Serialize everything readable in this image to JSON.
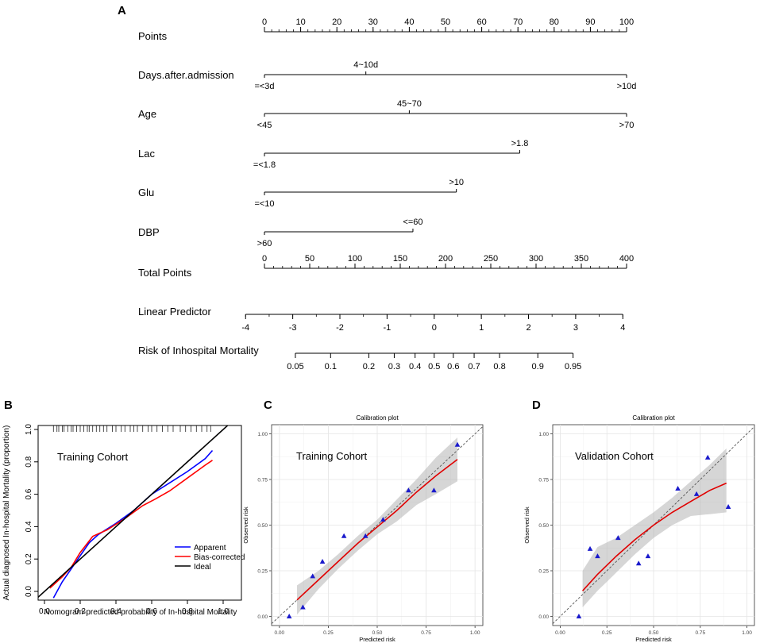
{
  "chart_data": [
    {
      "panel": "A",
      "type": "nomogram",
      "rows": [
        {
          "label": "Points",
          "kind": "scale",
          "min": 0,
          "max": 100,
          "major": [
            0,
            10,
            20,
            30,
            40,
            50,
            60,
            70,
            80,
            90,
            100
          ],
          "minor_step": 2
        },
        {
          "label": "Days.after.admission",
          "kind": "variable",
          "levels": [
            {
              "text": "=<3d",
              "points": 0,
              "side": "below"
            },
            {
              "text": "4~10d",
              "points": 28,
              "side": "above"
            },
            {
              "text": ">10d",
              "points": 100,
              "side": "below"
            }
          ]
        },
        {
          "label": "Age",
          "kind": "variable",
          "levels": [
            {
              "text": "<45",
              "points": 0,
              "side": "below"
            },
            {
              "text": "45~70",
              "points": 40,
              "side": "above"
            },
            {
              "text": ">70",
              "points": 100,
              "side": "below"
            }
          ]
        },
        {
          "label": "Lac",
          "kind": "variable",
          "levels": [
            {
              "text": "=<1.8",
              "points": 0,
              "side": "below"
            },
            {
              "text": ">1.8",
              "points": 70.5,
              "side": "above"
            }
          ]
        },
        {
          "label": "Glu",
          "kind": "variable",
          "levels": [
            {
              "text": "=<10",
              "points": 0,
              "side": "below"
            },
            {
              "text": ">10",
              "points": 53,
              "side": "above"
            }
          ]
        },
        {
          "label": "DBP",
          "kind": "variable",
          "levels": [
            {
              "text": ">60",
              "points": 0,
              "side": "below"
            },
            {
              "text": "<=60",
              "points": 41,
              "side": "above"
            }
          ]
        },
        {
          "label": "Total Points",
          "kind": "scale",
          "min": 0,
          "max": 400,
          "major": [
            0,
            50,
            100,
            150,
            200,
            250,
            300,
            350,
            400
          ],
          "minor_step": 10
        },
        {
          "label": "Linear Predictor",
          "kind": "lp",
          "min": -4,
          "max": 4,
          "values": [
            -4,
            -3,
            -2,
            -1,
            0,
            1,
            2,
            3,
            4
          ],
          "tick_labels": [
            "-4",
            "-3",
            "-2",
            "-1",
            "0",
            "1",
            "2",
            "3",
            "4"
          ],
          "lp_at_total_0": -3.6,
          "lp_per_point": 0.0192
        },
        {
          "label": "Risk of Inhospital Mortality",
          "kind": "risk",
          "values": [
            0.05,
            0.1,
            0.2,
            0.3,
            0.4,
            0.5,
            0.6,
            0.7,
            0.8,
            0.9,
            0.95
          ],
          "tick_labels": [
            "0.05",
            "0.1",
            "0.2",
            "0.3",
            "0.4",
            "0.5",
            "0.6",
            "0.7",
            "0.8",
            "0.9",
            "0.95"
          ]
        }
      ]
    },
    {
      "panel": "B",
      "type": "line",
      "annotation": "Training Cohort",
      "xlabel": "Nomogram-predicted probability of In-hospital Mortality",
      "ylabel": "Actual diagnosed In-hospital Mortality (proportion)",
      "xlim": [
        0,
        1.0
      ],
      "ylim": [
        0,
        1.0
      ],
      "xticks": [
        0.0,
        0.2,
        0.4,
        0.6,
        0.8,
        1.0
      ],
      "xtick_labels": [
        "0.0",
        "0.2",
        "0.4",
        "0.6",
        "0.8",
        "1.0"
      ],
      "yticks": [
        0.0,
        0.2,
        0.4,
        0.6,
        0.8,
        1.0
      ],
      "ytick_labels": [
        "0.0",
        "0.2",
        "0.4",
        "0.6",
        "0.8",
        "1.0"
      ],
      "series": [
        {
          "name": "Apparent",
          "color": "#0000ff",
          "x": [
            0.05,
            0.1,
            0.15,
            0.2,
            0.25,
            0.3,
            0.4,
            0.5,
            0.6,
            0.7,
            0.8,
            0.9,
            0.94
          ],
          "y": [
            -0.04,
            0.06,
            0.14,
            0.22,
            0.3,
            0.35,
            0.42,
            0.5,
            0.6,
            0.67,
            0.74,
            0.82,
            0.87
          ]
        },
        {
          "name": "Bias-corrected",
          "color": "#ff0000",
          "x": [
            0.03,
            0.1,
            0.15,
            0.2,
            0.27,
            0.35,
            0.45,
            0.55,
            0.62,
            0.7,
            0.8,
            0.9,
            0.94
          ],
          "y": [
            0.02,
            0.09,
            0.15,
            0.24,
            0.34,
            0.38,
            0.45,
            0.53,
            0.57,
            0.62,
            0.7,
            0.78,
            0.81
          ]
        },
        {
          "name": "Ideal",
          "color": "#000000",
          "x": [
            -0.05,
            1.03
          ],
          "y": [
            -0.05,
            1.03
          ]
        }
      ],
      "rug": [
        0.05,
        0.07,
        0.08,
        0.1,
        0.11,
        0.13,
        0.15,
        0.16,
        0.18,
        0.2,
        0.22,
        0.24,
        0.25,
        0.27,
        0.29,
        0.31,
        0.33,
        0.35,
        0.38,
        0.4,
        0.43,
        0.45,
        0.48,
        0.5,
        0.52,
        0.55,
        0.58,
        0.6,
        0.63,
        0.66,
        0.69,
        0.72,
        0.76,
        0.79,
        0.82,
        0.85,
        0.88,
        0.91,
        0.93
      ]
    },
    {
      "panel": "C",
      "type": "scatter",
      "title": "Calibration plot",
      "annotation": "Training Cohort",
      "xlabel": "Predicted risk",
      "ylabel": "Observed risk",
      "xlim": [
        -0.04,
        1.04
      ],
      "ylim": [
        -0.05,
        1.05
      ],
      "xticks": [
        0.0,
        0.25,
        0.5,
        0.75,
        1.0
      ],
      "xtick_labels": [
        "0.00",
        "0.25",
        "0.50",
        "0.75",
        "1.00"
      ],
      "yticks": [
        0.0,
        0.25,
        0.5,
        0.75,
        1.0
      ],
      "ytick_labels": [
        "0.00",
        "0.25",
        "0.50",
        "0.75",
        "1.00"
      ],
      "points": {
        "x": [
          0.05,
          0.12,
          0.17,
          0.22,
          0.33,
          0.44,
          0.53,
          0.66,
          0.79,
          0.91
        ],
        "y": [
          0.0,
          0.05,
          0.22,
          0.3,
          0.44,
          0.44,
          0.53,
          0.69,
          0.69,
          0.94
        ]
      },
      "fit": {
        "x": [
          0.09,
          0.2,
          0.3,
          0.4,
          0.5,
          0.6,
          0.7,
          0.8,
          0.91
        ],
        "y": [
          0.09,
          0.2,
          0.3,
          0.4,
          0.49,
          0.58,
          0.68,
          0.77,
          0.86
        ]
      },
      "band_upper": [
        0.17,
        0.25,
        0.34,
        0.44,
        0.53,
        0.64,
        0.75,
        0.87,
        0.98
      ],
      "band_lower": [
        0.01,
        0.15,
        0.26,
        0.36,
        0.45,
        0.52,
        0.61,
        0.67,
        0.74
      ]
    },
    {
      "panel": "D",
      "type": "scatter",
      "title": "Calibration plot",
      "annotation": "Validation Cohort",
      "xlabel": "Predicted risk",
      "ylabel": "Observed risk",
      "xlim": [
        -0.04,
        1.04
      ],
      "ylim": [
        -0.05,
        1.05
      ],
      "xticks": [
        0.0,
        0.25,
        0.5,
        0.75,
        1.0
      ],
      "xtick_labels": [
        "0.00",
        "0.25",
        "0.50",
        "0.75",
        "1.00"
      ],
      "yticks": [
        0.0,
        0.25,
        0.5,
        0.75,
        1.0
      ],
      "ytick_labels": [
        "0.00",
        "0.25",
        "0.50",
        "0.75",
        "1.00"
      ],
      "points": {
        "x": [
          0.1,
          0.16,
          0.2,
          0.31,
          0.42,
          0.47,
          0.63,
          0.73,
          0.79,
          0.9
        ],
        "y": [
          0.0,
          0.37,
          0.33,
          0.43,
          0.29,
          0.33,
          0.7,
          0.67,
          0.87,
          0.6
        ]
      },
      "fit": {
        "x": [
          0.12,
          0.2,
          0.3,
          0.4,
          0.5,
          0.6,
          0.7,
          0.8,
          0.89
        ],
        "y": [
          0.14,
          0.23,
          0.33,
          0.42,
          0.5,
          0.57,
          0.63,
          0.69,
          0.73
        ]
      },
      "band_upper": [
        0.25,
        0.38,
        0.43,
        0.5,
        0.57,
        0.65,
        0.74,
        0.83,
        0.92
      ],
      "band_lower": [
        0.05,
        0.14,
        0.24,
        0.34,
        0.43,
        0.5,
        0.55,
        0.56,
        0.57
      ]
    }
  ]
}
